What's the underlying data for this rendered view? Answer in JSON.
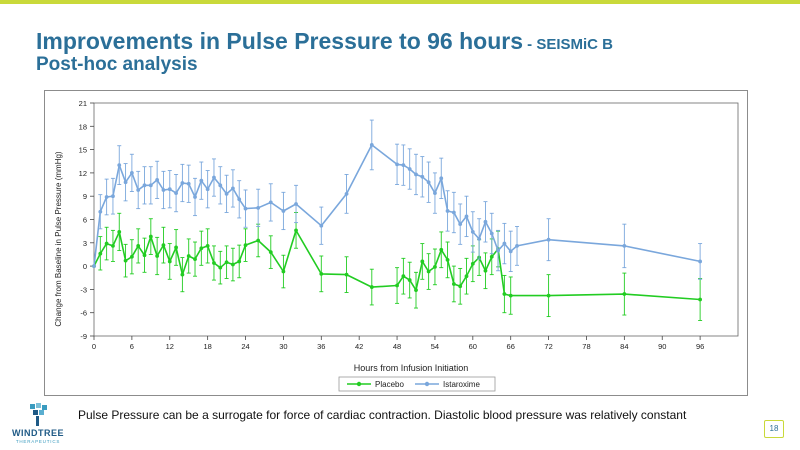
{
  "slide": {
    "title_main": "Improvements in Pulse Pressure to 96 hours",
    "title_suffix": " - SEISMiC B",
    "subtitle": "Post-hoc analysis",
    "footnote": "Pulse Pressure can be a surrogate for force of cardiac contraction. Diastolic blood pressure was relatively constant",
    "page_number": "18",
    "logo_name": "WINDTREE",
    "logo_tagline": "THERAPEUTICS",
    "colors": {
      "title": "#2b6f98",
      "accent_bar": "#c9d93a",
      "placebo": "#22cc22",
      "istaroxime": "#7aa7dc"
    }
  },
  "chart_data": {
    "type": "line",
    "xlabel": "Hours from Infusion Initiation",
    "ylabel": "Change from Baseline in Pulse Pressure (mmHg)",
    "xlim": [
      0,
      102
    ],
    "ylim": [
      -9,
      21
    ],
    "xticks": [
      0,
      6,
      12,
      18,
      24,
      30,
      36,
      42,
      48,
      54,
      60,
      66,
      72,
      78,
      84,
      90,
      96
    ],
    "yticks": [
      -9,
      -6,
      -3,
      0,
      3,
      6,
      9,
      12,
      15,
      18,
      21
    ],
    "legend_position": "bottom",
    "series": [
      {
        "name": "Placebo",
        "color": "#22cc22",
        "points": [
          [
            0,
            0.0,
            0.0,
            0.0
          ],
          [
            1,
            1.6,
            -0.5,
            3.8
          ],
          [
            2,
            2.9,
            0.8,
            5.0
          ],
          [
            3,
            2.6,
            0.6,
            4.6
          ],
          [
            4,
            4.4,
            2.0,
            6.8
          ],
          [
            5,
            0.7,
            -1.4,
            2.8
          ],
          [
            6,
            1.2,
            -1.0,
            3.4
          ],
          [
            7,
            2.6,
            0.4,
            4.8
          ],
          [
            8,
            1.4,
            -0.8,
            3.6
          ],
          [
            9,
            3.8,
            1.5,
            6.1
          ],
          [
            10,
            1.3,
            -1.1,
            3.7
          ],
          [
            11,
            2.7,
            0.4,
            5.0
          ],
          [
            12,
            0.6,
            -1.7,
            2.9
          ],
          [
            13,
            2.4,
            0.1,
            4.7
          ],
          [
            14,
            -1.1,
            -3.3,
            1.1
          ],
          [
            15,
            1.3,
            -0.9,
            3.5
          ],
          [
            16,
            0.9,
            -1.3,
            3.1
          ],
          [
            17,
            2.3,
            0.1,
            4.5
          ],
          [
            18,
            2.6,
            0.4,
            4.8
          ],
          [
            19,
            0.4,
            -1.8,
            2.6
          ],
          [
            20,
            -0.2,
            -2.3,
            1.9
          ],
          [
            21,
            0.5,
            -1.6,
            2.6
          ],
          [
            22,
            0.2,
            -1.9,
            2.3
          ],
          [
            23,
            0.6,
            -1.5,
            2.7
          ],
          [
            24,
            2.7,
            0.6,
            4.8
          ],
          [
            26,
            3.3,
            1.2,
            5.4
          ],
          [
            28,
            1.8,
            -0.3,
            3.9
          ],
          [
            30,
            -0.7,
            -2.8,
            1.4
          ],
          [
            32,
            4.6,
            2.3,
            6.9
          ],
          [
            36,
            -1.0,
            -3.3,
            1.3
          ],
          [
            40,
            -1.1,
            -3.4,
            1.2
          ],
          [
            44,
            -2.7,
            -5.0,
            -0.4
          ],
          [
            48,
            -2.5,
            -4.8,
            -0.2
          ],
          [
            49,
            -1.3,
            -3.6,
            1.0
          ],
          [
            50,
            -1.8,
            -4.1,
            0.5
          ],
          [
            51,
            -3.1,
            -5.4,
            -0.8
          ],
          [
            52,
            0.6,
            -1.7,
            2.9
          ],
          [
            53,
            -0.7,
            -3.0,
            1.6
          ],
          [
            54,
            -0.1,
            -2.4,
            2.2
          ],
          [
            55,
            2.1,
            -0.2,
            4.4
          ],
          [
            56,
            0.8,
            -1.5,
            3.1
          ],
          [
            57,
            -2.3,
            -4.6,
            0.0
          ],
          [
            58,
            -2.6,
            -4.9,
            -0.3
          ],
          [
            59,
            -1.3,
            -3.6,
            1.0
          ],
          [
            60,
            0.3,
            -2.0,
            2.6
          ],
          [
            61,
            1.1,
            -1.2,
            3.4
          ],
          [
            62,
            -0.6,
            -2.9,
            1.7
          ],
          [
            63,
            1.2,
            -1.1,
            3.5
          ],
          [
            64,
            2.2,
            -0.1,
            4.5
          ],
          [
            65,
            -3.6,
            -6.0,
            -1.2
          ],
          [
            66,
            -3.8,
            -6.2,
            -1.4
          ],
          [
            72,
            -3.8,
            -6.5,
            -1.1
          ],
          [
            84,
            -3.6,
            -6.3,
            -0.9
          ],
          [
            96,
            -4.3,
            -7.0,
            -1.6
          ]
        ]
      },
      {
        "name": "Istaroxime",
        "color": "#7aa7dc",
        "points": [
          [
            0,
            0.0,
            0.0,
            0.0
          ],
          [
            1,
            7.0,
            4.8,
            9.2
          ],
          [
            2,
            8.9,
            6.6,
            11.2
          ],
          [
            3,
            9.0,
            6.7,
            11.3
          ],
          [
            4,
            13.0,
            10.5,
            15.5
          ],
          [
            5,
            10.8,
            8.4,
            13.2
          ],
          [
            6,
            12.0,
            9.6,
            14.4
          ],
          [
            7,
            9.8,
            7.4,
            12.2
          ],
          [
            8,
            10.4,
            8.0,
            12.8
          ],
          [
            9,
            10.4,
            8.0,
            12.8
          ],
          [
            10,
            11.1,
            8.7,
            13.5
          ],
          [
            11,
            9.8,
            7.4,
            12.2
          ],
          [
            12,
            9.9,
            7.5,
            12.3
          ],
          [
            13,
            9.4,
            7.0,
            11.8
          ],
          [
            14,
            10.7,
            8.3,
            13.1
          ],
          [
            15,
            10.6,
            8.2,
            13.0
          ],
          [
            16,
            8.9,
            6.5,
            11.3
          ],
          [
            17,
            11.0,
            8.6,
            13.4
          ],
          [
            18,
            9.9,
            7.5,
            12.3
          ],
          [
            19,
            11.4,
            9.0,
            13.8
          ],
          [
            20,
            10.4,
            8.0,
            12.8
          ],
          [
            21,
            9.3,
            6.9,
            11.7
          ],
          [
            22,
            10.0,
            7.6,
            12.4
          ],
          [
            23,
            8.6,
            6.2,
            11.0
          ],
          [
            24,
            7.4,
            5.0,
            9.8
          ],
          [
            26,
            7.5,
            5.1,
            9.9
          ],
          [
            28,
            8.2,
            5.8,
            10.6
          ],
          [
            30,
            7.1,
            4.7,
            9.5
          ],
          [
            32,
            8.0,
            5.6,
            10.4
          ],
          [
            36,
            5.2,
            2.8,
            7.6
          ],
          [
            40,
            9.3,
            6.8,
            11.8
          ],
          [
            44,
            15.6,
            12.4,
            18.8
          ],
          [
            48,
            13.1,
            10.5,
            15.7
          ],
          [
            49,
            13.0,
            10.4,
            15.6
          ],
          [
            50,
            12.5,
            9.9,
            15.1
          ],
          [
            51,
            11.8,
            9.2,
            14.4
          ],
          [
            52,
            11.5,
            8.9,
            14.1
          ],
          [
            53,
            10.8,
            8.2,
            13.4
          ],
          [
            54,
            9.4,
            6.8,
            12.0
          ],
          [
            55,
            11.3,
            8.7,
            13.9
          ],
          [
            56,
            7.1,
            4.5,
            9.7
          ],
          [
            57,
            6.9,
            4.3,
            9.5
          ],
          [
            58,
            5.4,
            2.8,
            8.0
          ],
          [
            59,
            6.4,
            3.8,
            9.0
          ],
          [
            60,
            4.4,
            1.8,
            7.0
          ],
          [
            61,
            3.5,
            0.9,
            6.1
          ],
          [
            62,
            5.7,
            3.1,
            8.3
          ],
          [
            63,
            4.2,
            1.6,
            6.8
          ],
          [
            64,
            2.0,
            -0.6,
            4.6
          ],
          [
            65,
            2.9,
            0.3,
            5.5
          ],
          [
            66,
            1.9,
            -0.7,
            4.5
          ],
          [
            67,
            2.6,
            0.1,
            5.1
          ],
          [
            72,
            3.4,
            0.7,
            6.1
          ],
          [
            84,
            2.6,
            -0.2,
            5.4
          ],
          [
            96,
            0.6,
            -1.7,
            2.9
          ]
        ]
      }
    ]
  }
}
